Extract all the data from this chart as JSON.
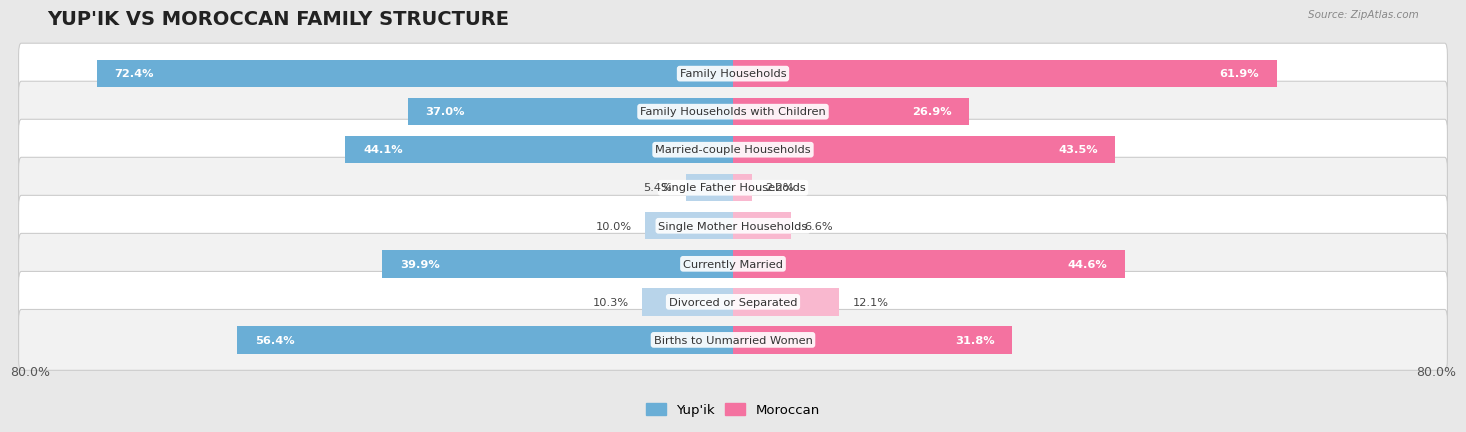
{
  "title": "YUP'IK VS MOROCCAN FAMILY STRUCTURE",
  "source": "Source: ZipAtlas.com",
  "categories": [
    "Family Households",
    "Family Households with Children",
    "Married-couple Households",
    "Single Father Households",
    "Single Mother Households",
    "Currently Married",
    "Divorced or Separated",
    "Births to Unmarried Women"
  ],
  "yupik_values": [
    72.4,
    37.0,
    44.1,
    5.4,
    10.0,
    39.9,
    10.3,
    56.4
  ],
  "moroccan_values": [
    61.9,
    26.9,
    43.5,
    2.2,
    6.6,
    44.6,
    12.1,
    31.8
  ],
  "max_val": 80.0,
  "yupik_color_strong": "#6aaed6",
  "yupik_color_light": "#b8d4ea",
  "moroccan_color_strong": "#f472a0",
  "moroccan_color_light": "#f9b8cf",
  "bg_color": "#e8e8e8",
  "row_bg_white": "#ffffff",
  "row_bg_light": "#f2f2f2",
  "bar_height": 0.72,
  "title_fontsize": 14,
  "label_fontsize": 8.2,
  "value_fontsize": 8.2,
  "yupik_strong_thresh": 15.0,
  "moroccan_strong_thresh": 15.0
}
